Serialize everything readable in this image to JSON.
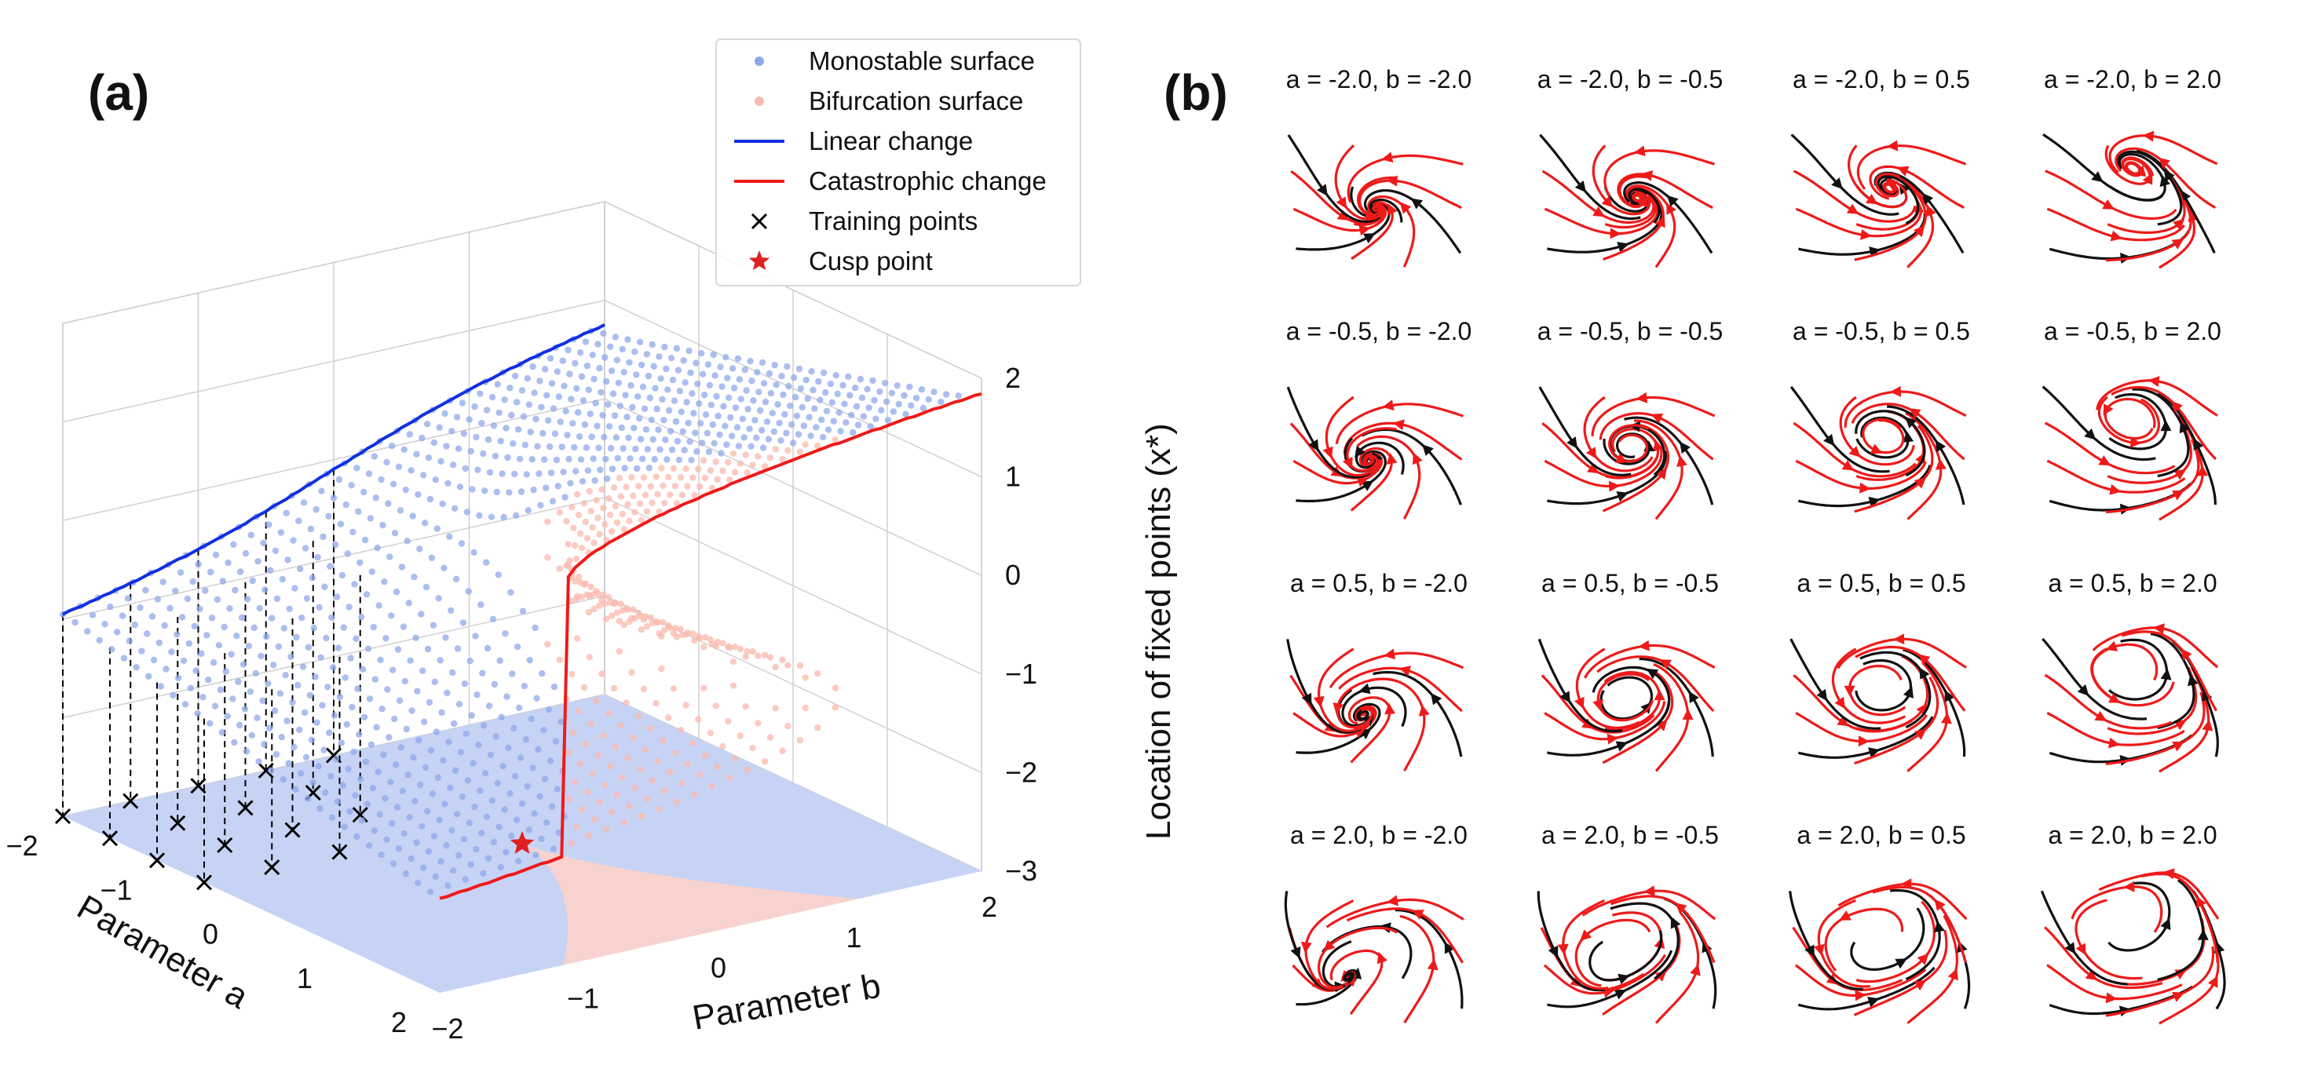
{
  "chart_data": [
    {
      "panel": "(a)",
      "type": "scatter",
      "xlabel": "Parameter a",
      "ylabel": "Parameter b",
      "zlabel": "Location of fixed points (x*)",
      "x_ticks": [
        "−2",
        "−1",
        "0",
        "1",
        "2"
      ],
      "y_ticks": [
        "−2",
        "−1",
        "0",
        "1",
        "2"
      ],
      "z_ticks": [
        "2",
        "1",
        "0",
        "−1",
        "−2",
        "−3"
      ],
      "xlim": [
        -2,
        2
      ],
      "ylim": [
        -2,
        2
      ],
      "zlim": [
        -3,
        2
      ],
      "grid": true,
      "legend_position": "top-right",
      "legend": [
        {
          "label": "Monostable surface",
          "marker": "dot",
          "color": "#8fa8ea"
        },
        {
          "label": "Bifurcation surface",
          "marker": "dot",
          "color": "#f9b9ae"
        },
        {
          "label": "Linear change",
          "marker": "line",
          "color": "#1030e0"
        },
        {
          "label": "Catastrophic change",
          "marker": "line",
          "color": "#ee1a1a"
        },
        {
          "label": "Training points",
          "marker": "x",
          "color": "#000000"
        },
        {
          "label": "Cusp point",
          "marker": "star",
          "color": "#e02020"
        }
      ],
      "training_points": [
        {
          "a": -2.0,
          "b": -2.0
        },
        {
          "a": -1.5,
          "b": -2.0
        },
        {
          "a": -1.0,
          "b": -2.0
        },
        {
          "a": -0.5,
          "b": -2.0
        },
        {
          "a": -2.0,
          "b": -1.5
        },
        {
          "a": -1.5,
          "b": -1.5
        },
        {
          "a": -1.0,
          "b": -1.5
        },
        {
          "a": -0.5,
          "b": -1.5
        },
        {
          "a": -2.0,
          "b": -1.0
        },
        {
          "a": -1.5,
          "b": -1.0
        },
        {
          "a": -1.0,
          "b": -1.0
        },
        {
          "a": -0.5,
          "b": -1.0
        },
        {
          "a": -2.0,
          "b": -0.5
        },
        {
          "a": -1.5,
          "b": -0.5
        },
        {
          "a": -1.0,
          "b": -0.5
        },
        {
          "a": -2.0,
          "b": 0.0
        }
      ],
      "cusp_point": {
        "a": 0,
        "b": 0,
        "x": -3
      },
      "linear_change": {
        "a": -2,
        "b_range": [
          -2,
          2
        ]
      },
      "catastrophic_change": {
        "a": 2,
        "b_range": [
          -2,
          2
        ]
      },
      "surface_colors": {
        "monostable": "#8fa8ea",
        "bifurcation": "#f9b9ae",
        "floor_mono": "#c4d1f4",
        "floor_bif": "#fbd2cb"
      }
    },
    {
      "panel": "(b)",
      "type": "streamplot-grid",
      "stream_colors": {
        "primary": "#ee1a1a",
        "secondary": "#111111"
      },
      "titles": [
        "a = -2.0, b = -2.0",
        "a = -2.0, b = -0.5",
        "a = -2.0, b = 0.5",
        "a = -2.0, b = 2.0",
        "a = -0.5, b = -2.0",
        "a = -0.5, b = -0.5",
        "a = -0.5, b = 0.5",
        "a = -0.5, b = 2.0",
        "a = 0.5, b = -2.0",
        "a = 0.5, b = -0.5",
        "a = 0.5, b = 0.5",
        "a = 0.5, b = 2.0",
        "a = 2.0, b = -2.0",
        "a = 2.0, b = -0.5",
        "a = 2.0, b = 0.5",
        "a = 2.0, b = 2.0"
      ],
      "a_values": [
        -2.0,
        -2.0,
        -2.0,
        -2.0,
        -0.5,
        -0.5,
        -0.5,
        -0.5,
        0.5,
        0.5,
        0.5,
        0.5,
        2.0,
        2.0,
        2.0,
        2.0
      ],
      "b_values": [
        -2.0,
        -0.5,
        0.5,
        2.0,
        -2.0,
        -0.5,
        0.5,
        2.0,
        -2.0,
        -0.5,
        0.5,
        2.0,
        -2.0,
        -0.5,
        0.5,
        2.0
      ]
    }
  ]
}
